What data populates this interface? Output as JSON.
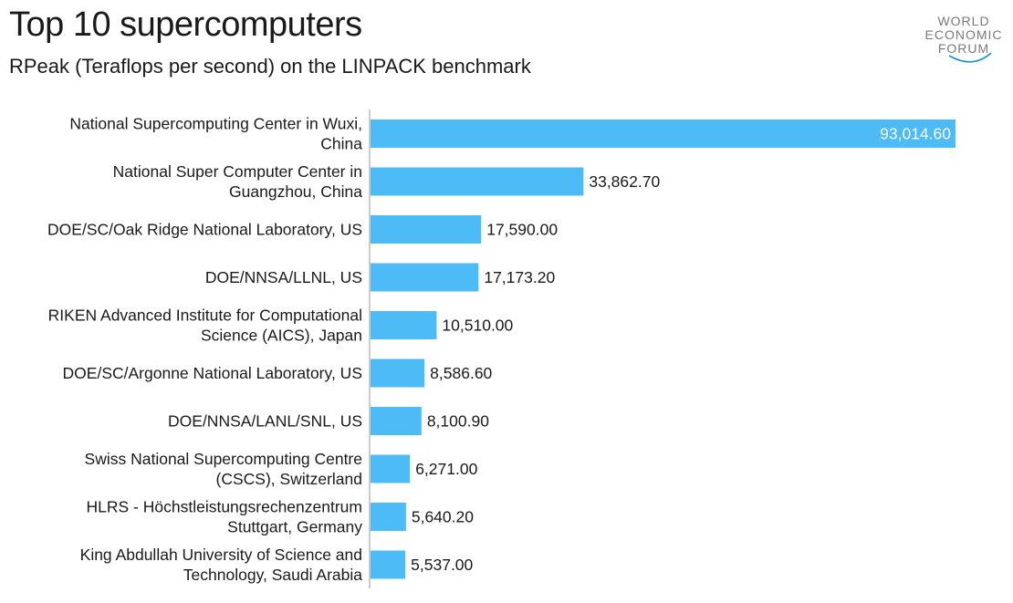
{
  "chart_data": {
    "type": "bar",
    "orientation": "horizontal",
    "title": "Top 10 supercomputers",
    "subtitle": "RPeak (Teraflops per second) on the LINPACK benchmark",
    "categories": [
      [
        "National Supercomputing Center in Wuxi,",
        "China"
      ],
      [
        "National Super Computer Center in",
        "Guangzhou, China"
      ],
      [
        "DOE/SC/Oak Ridge National Laboratory, US"
      ],
      [
        "DOE/NNSA/LLNL, US"
      ],
      [
        "RIKEN Advanced Institute for Computational",
        "Science (AICS), Japan"
      ],
      [
        "DOE/SC/Argonne National Laboratory, US"
      ],
      [
        "DOE/NNSA/LANL/SNL, US"
      ],
      [
        "Swiss National Supercomputing Centre",
        "(CSCS), Switzerland"
      ],
      [
        "HLRS - Höchstleistungsrechenzentrum",
        "Stuttgart, Germany"
      ],
      [
        "King Abdullah University of Science and",
        "Technology, Saudi Arabia"
      ]
    ],
    "values": [
      93014.6,
      33862.7,
      17590.0,
      17173.2,
      10510.0,
      8586.6,
      8100.9,
      6271.0,
      5640.2,
      5537.0
    ],
    "value_labels": [
      "93,014.60",
      "33,862.70",
      "17,590.00",
      "17,173.20",
      "10,510.00",
      "8,586.60",
      "8,100.90",
      "6,271.00",
      "5,640.20",
      "5,537.00"
    ],
    "xlim": [
      0,
      93014.6
    ],
    "bar_color": "#4DBBF5",
    "grid": false,
    "legend": "none"
  },
  "logo": {
    "lines": [
      "WORLD",
      "ECONOMIC",
      "FORUM"
    ],
    "color": "#1E8FCF"
  }
}
